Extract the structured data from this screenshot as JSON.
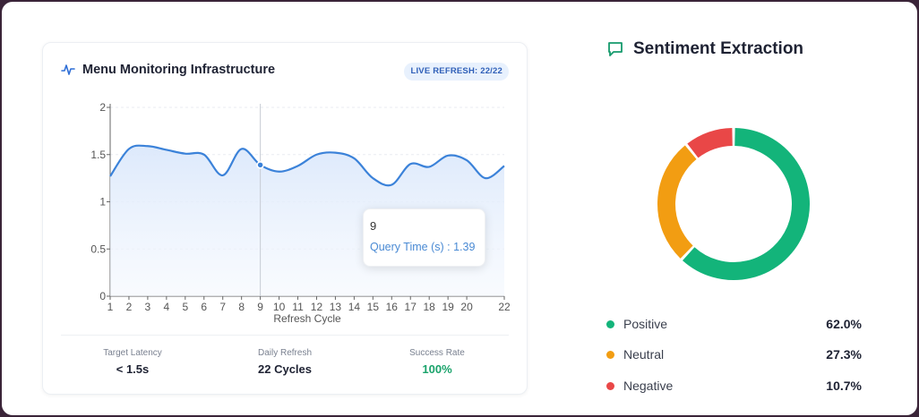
{
  "monitor": {
    "title": "Menu Monitoring Infrastructure",
    "badge": "LIVE REFRESH: 22/22",
    "pulse_icon": "activity-icon",
    "stats": [
      {
        "label": "Target Latency",
        "value": "< 1.5s"
      },
      {
        "label": "Daily Refresh",
        "value": "22 Cycles"
      },
      {
        "label": "Success Rate",
        "value": "100%"
      }
    ],
    "tooltip": {
      "title": "9",
      "text": "Query Time (s) : 1.39"
    }
  },
  "chart_data": {
    "type": "area",
    "xlabel": "Refresh Cycle",
    "ylabel": "",
    "x": [
      1,
      2,
      3,
      4,
      5,
      6,
      7,
      8,
      9,
      10,
      11,
      12,
      13,
      14,
      15,
      16,
      17,
      18,
      19,
      20,
      21,
      22
    ],
    "series": [
      {
        "name": "Query Time (s)",
        "values": [
          1.27,
          1.56,
          1.59,
          1.55,
          1.51,
          1.5,
          1.28,
          1.56,
          1.39,
          1.32,
          1.38,
          1.5,
          1.52,
          1.46,
          1.25,
          1.18,
          1.4,
          1.37,
          1.49,
          1.44,
          1.25,
          1.38
        ]
      }
    ],
    "ylim": [
      0,
      2
    ],
    "yticks": [
      0,
      0.5,
      1,
      1.5,
      2
    ],
    "xticks": [
      1,
      2,
      3,
      4,
      5,
      6,
      7,
      8,
      9,
      10,
      11,
      12,
      13,
      14,
      15,
      16,
      17,
      18,
      19,
      20,
      22
    ],
    "highlight_x": 9,
    "grid": true,
    "colors": {
      "line": "#3b82d9",
      "fill": "#e9f1fc"
    }
  },
  "sentiment": {
    "title": "Sentiment Extraction",
    "icon": "chat-bubble-icon",
    "chart_data": {
      "type": "pie",
      "categories": [
        "Positive",
        "Neutral",
        "Negative"
      ],
      "values": [
        62.0,
        27.3,
        10.7
      ],
      "colors": [
        "#13b47a",
        "#f29d12",
        "#e94747"
      ]
    },
    "legend": [
      {
        "name": "Positive",
        "pct": "62.0%"
      },
      {
        "name": "Neutral",
        "pct": "27.3%"
      },
      {
        "name": "Negative",
        "pct": "10.7%"
      }
    ]
  }
}
